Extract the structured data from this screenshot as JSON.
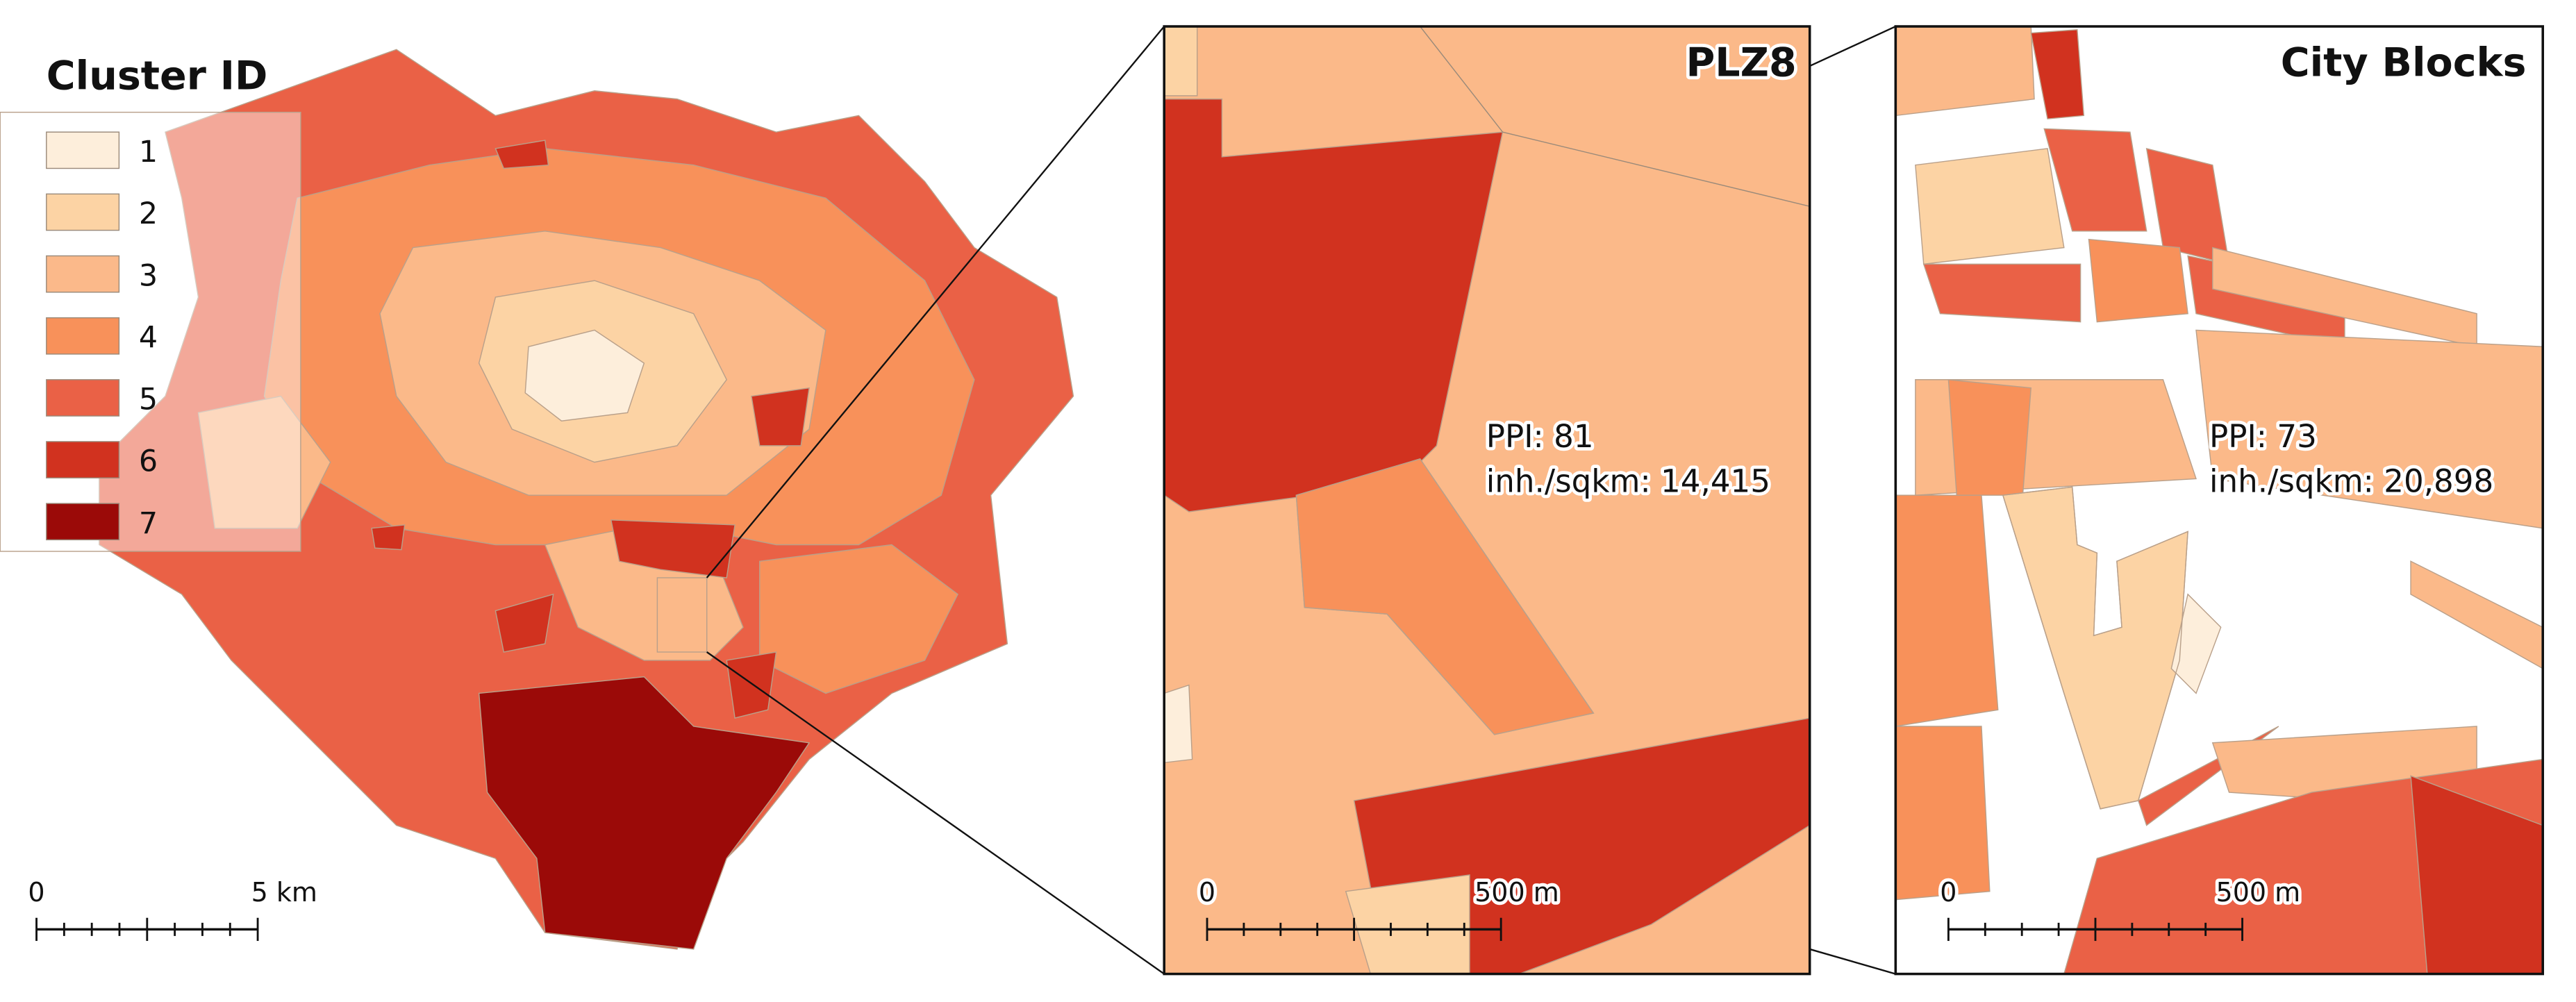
{
  "legend": {
    "title": "Cluster ID",
    "items": [
      {
        "label": "1",
        "color": "#fdeedb"
      },
      {
        "label": "2",
        "color": "#fcd3a4"
      },
      {
        "label": "3",
        "color": "#fbb98a"
      },
      {
        "label": "4",
        "color": "#f8915a"
      },
      {
        "label": "5",
        "color": "#ea6146"
      },
      {
        "label": "6",
        "color": "#d1321f"
      },
      {
        "label": "7",
        "color": "#9b0a08"
      }
    ]
  },
  "main_map": {
    "scale_bar": {
      "start": "0",
      "end": "5 km"
    }
  },
  "panels": [
    {
      "title": "PLZ8",
      "annotation": [
        "PPI: 81",
        "inh./sqkm: 14,415"
      ],
      "scale_bar": {
        "start": "0",
        "end": "500 m"
      }
    },
    {
      "title": "City Blocks",
      "annotation": [
        "PPI: 73",
        "inh./sqkm: 20,898"
      ],
      "scale_bar": {
        "start": "0",
        "end": "500 m"
      }
    }
  ]
}
